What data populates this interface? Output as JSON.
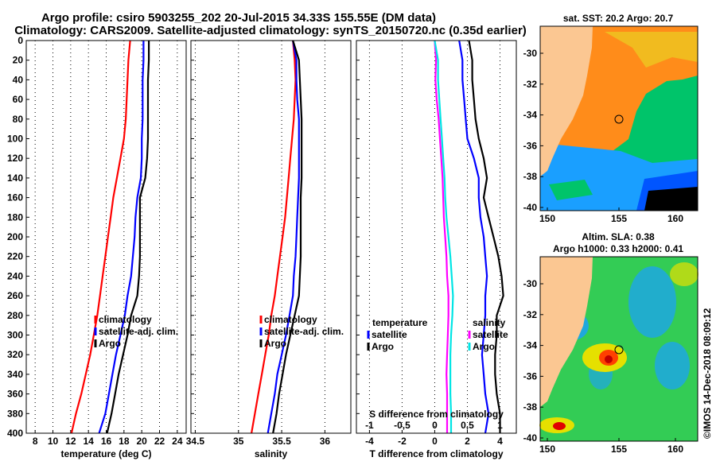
{
  "header": {
    "title_line1": "Argo profile: csiro 5903255_202 20-Jul-2015 34.33S 155.55E (DM data)",
    "title_line2": "Climatology: CARS2009. Satellite-adjusted climatology: synTS_20150720.nc (0.35d earlier)"
  },
  "watermark": "©IMOS 14-Dec-2018 08:09:12",
  "colors": {
    "climatology": "#ff0000",
    "satellite": "#0000ff",
    "argo": "#000000",
    "satellite_s": "#ff00ff",
    "argo_s": "#00e5e5"
  },
  "chart_data": [
    {
      "id": "temperature",
      "type": "line",
      "xlabel": "temperature (deg C)",
      "ylabel": "",
      "xlim": [
        7,
        25
      ],
      "ylim": [
        400,
        0
      ],
      "xticks": [
        8,
        10,
        12,
        14,
        16,
        18,
        20,
        22,
        24
      ],
      "yticks": [
        0,
        20,
        40,
        60,
        80,
        100,
        120,
        140,
        160,
        180,
        200,
        220,
        240,
        260,
        280,
        300,
        320,
        340,
        360,
        380,
        400
      ],
      "legend": [
        "climatology",
        "satellite-adj. clim.",
        "Argo"
      ],
      "series": [
        {
          "name": "climatology",
          "color": "#ff0000",
          "depth": [
            0,
            20,
            40,
            60,
            80,
            100,
            120,
            140,
            160,
            180,
            200,
            220,
            240,
            260,
            280,
            300,
            320,
            340,
            360,
            380,
            400
          ],
          "values": [
            18.7,
            18.5,
            18.4,
            18.3,
            18.2,
            18.0,
            17.6,
            17.2,
            16.8,
            16.5,
            16.2,
            15.9,
            15.6,
            15.3,
            15.0,
            14.6,
            14.2,
            13.7,
            13.2,
            12.6,
            12.1
          ]
        },
        {
          "name": "satellite-adj. clim.",
          "color": "#0000ff",
          "depth": [
            0,
            20,
            40,
            60,
            80,
            100,
            120,
            140,
            160,
            180,
            200,
            220,
            240,
            260,
            280,
            300,
            320,
            340,
            360,
            380,
            400
          ],
          "values": [
            20.2,
            20.2,
            20.1,
            20.1,
            20.1,
            20.0,
            20.0,
            19.9,
            19.5,
            19.3,
            19.2,
            19.0,
            18.8,
            18.4,
            18.1,
            17.6,
            17.1,
            16.7,
            16.3,
            15.9,
            15.2
          ]
        },
        {
          "name": "Argo",
          "color": "#000000",
          "depth": [
            0,
            20,
            40,
            60,
            80,
            100,
            120,
            140,
            160,
            180,
            200,
            220,
            240,
            260,
            280,
            300,
            320,
            340,
            360,
            380,
            400
          ],
          "values": [
            20.8,
            20.8,
            20.7,
            20.7,
            20.7,
            20.7,
            20.6,
            20.4,
            19.8,
            19.8,
            19.8,
            19.8,
            19.7,
            19.5,
            18.8,
            18.4,
            17.9,
            17.4,
            17.0,
            16.6,
            16.1
          ]
        }
      ]
    },
    {
      "id": "salinity",
      "type": "line",
      "xlabel": "salinity",
      "ylabel": "",
      "xlim": [
        34.45,
        36.3
      ],
      "ylim": [
        400,
        0
      ],
      "xticks": [
        34.5,
        35,
        35.5,
        36
      ],
      "xticklabels": [
        "34.5",
        "35",
        "35.5",
        "36"
      ],
      "legend": [
        "climatology",
        "satellite-adj. clim.",
        "Argo"
      ],
      "series": [
        {
          "name": "climatology",
          "color": "#ff0000",
          "depth": [
            0,
            20,
            40,
            60,
            80,
            100,
            120,
            140,
            160,
            180,
            200,
            220,
            240,
            260,
            280,
            300,
            320,
            340,
            360,
            380,
            400
          ],
          "values": [
            35.63,
            35.65,
            35.66,
            35.65,
            35.64,
            35.62,
            35.6,
            35.58,
            35.56,
            35.54,
            35.51,
            35.48,
            35.45,
            35.42,
            35.38,
            35.35,
            35.31,
            35.27,
            35.23,
            35.19,
            35.15
          ]
        },
        {
          "name": "satellite-adj. clim.",
          "color": "#0000ff",
          "depth": [
            0,
            20,
            40,
            60,
            80,
            100,
            120,
            140,
            160,
            180,
            200,
            220,
            240,
            260,
            280,
            300,
            320,
            340,
            360,
            380,
            400
          ],
          "values": [
            35.63,
            35.67,
            35.67,
            35.68,
            35.7,
            35.7,
            35.7,
            35.7,
            35.69,
            35.68,
            35.67,
            35.66,
            35.64,
            35.63,
            35.59,
            35.55,
            35.5,
            35.45,
            35.42,
            35.38,
            35.34
          ]
        },
        {
          "name": "Argo",
          "color": "#000000",
          "depth": [
            0,
            20,
            40,
            60,
            80,
            100,
            120,
            140,
            160,
            180,
            200,
            220,
            240,
            260,
            280,
            300,
            320,
            340,
            360,
            380,
            400
          ],
          "values": [
            35.63,
            35.7,
            35.71,
            35.72,
            35.73,
            35.73,
            35.73,
            35.73,
            35.72,
            35.72,
            35.72,
            35.72,
            35.71,
            35.7,
            35.65,
            35.6,
            35.55,
            35.51,
            35.47,
            35.44,
            35.4
          ]
        }
      ]
    },
    {
      "id": "difference",
      "type": "line",
      "xlabel": "T difference from climatology",
      "x2label": "S difference from climatology",
      "xlim": [
        -4.8,
        5.0
      ],
      "ylim": [
        400,
        0
      ],
      "xticks": [
        -4,
        -2,
        0,
        2,
        4
      ],
      "xticklabels": [
        "-4",
        "-2",
        "0",
        "2",
        "4"
      ],
      "x2lim": [
        -1.2,
        1.25
      ],
      "x2ticks": [
        -1,
        -0.5,
        0,
        0.5,
        1
      ],
      "x2ticklabels": [
        "-1",
        "-0,5",
        "0",
        "0,5",
        "1"
      ],
      "legend_left_title": "temperature",
      "legend_left": [
        "satellite",
        "Argo"
      ],
      "legend_right_title": "salinity",
      "legend_right": [
        "satellite",
        "Argo"
      ],
      "series": [
        {
          "name": "T satellite",
          "axis": "x",
          "color": "#0000ff",
          "depth": [
            0,
            20,
            40,
            60,
            80,
            100,
            120,
            140,
            160,
            180,
            200,
            220,
            240,
            260,
            280,
            300,
            320,
            340,
            360,
            380,
            400
          ],
          "values": [
            1.5,
            1.7,
            1.7,
            1.8,
            1.9,
            2.0,
            2.4,
            2.7,
            2.7,
            2.8,
            3.0,
            3.1,
            3.2,
            3.1,
            3.1,
            3.0,
            2.9,
            3.0,
            3.1,
            3.3,
            3.1
          ]
        },
        {
          "name": "T Argo",
          "axis": "x",
          "color": "#000000",
          "depth": [
            0,
            20,
            40,
            60,
            80,
            100,
            120,
            140,
            160,
            180,
            200,
            220,
            240,
            260,
            280,
            300,
            320,
            340,
            360,
            380,
            400
          ],
          "values": [
            2.1,
            2.3,
            2.3,
            2.4,
            2.5,
            2.7,
            3.0,
            3.2,
            3.0,
            3.3,
            3.6,
            3.9,
            4.1,
            4.2,
            3.8,
            3.8,
            3.7,
            3.7,
            3.8,
            4.0,
            4.0
          ]
        },
        {
          "name": "S satellite",
          "axis": "x2",
          "color": "#ff00ff",
          "depth": [
            0,
            20,
            40,
            60,
            80,
            100,
            120,
            140,
            160,
            180,
            200,
            220,
            240,
            260,
            280,
            300,
            320,
            340,
            360,
            380,
            400
          ],
          "values": [
            0.0,
            0.02,
            0.01,
            0.03,
            0.06,
            0.08,
            0.1,
            0.12,
            0.13,
            0.14,
            0.16,
            0.18,
            0.19,
            0.21,
            0.21,
            0.2,
            0.19,
            0.18,
            0.19,
            0.19,
            0.19
          ]
        },
        {
          "name": "S Argo",
          "axis": "x2",
          "color": "#00e5e5",
          "depth": [
            0,
            20,
            40,
            60,
            80,
            100,
            120,
            140,
            160,
            180,
            200,
            220,
            240,
            260,
            280,
            300,
            320,
            340,
            360,
            380,
            400
          ],
          "values": [
            0.0,
            0.05,
            0.05,
            0.07,
            0.09,
            0.11,
            0.13,
            0.15,
            0.16,
            0.18,
            0.21,
            0.24,
            0.26,
            0.28,
            0.27,
            0.25,
            0.24,
            0.24,
            0.24,
            0.25,
            0.25
          ]
        }
      ]
    }
  ],
  "maps": [
    {
      "id": "sst-map",
      "title": "sat. SST: 20.2 Argo: 20.7",
      "xticks": [
        "150",
        "155",
        "160"
      ],
      "yticks": [
        "-30",
        "-32",
        "-34",
        "-36",
        "-38",
        "-40"
      ]
    },
    {
      "id": "sla-map",
      "title_line1": "Altim. SLA: 0.38",
      "title_line2": "Argo h1000: 0.33 h2000: 0.41",
      "xticks": [
        "150",
        "155",
        "160"
      ],
      "yticks": [
        "-30",
        "-32",
        "-34",
        "-36",
        "-38",
        "-40"
      ]
    }
  ]
}
